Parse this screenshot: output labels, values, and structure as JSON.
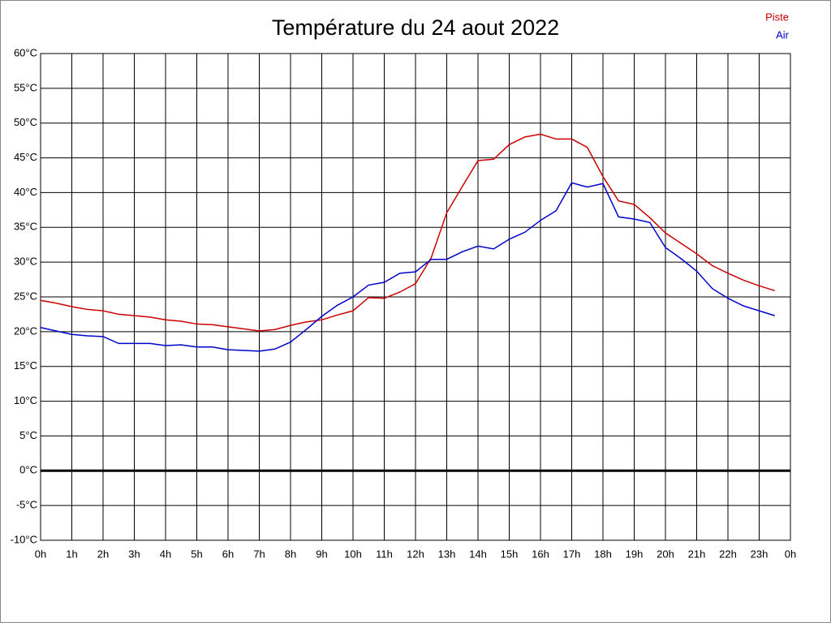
{
  "chart_data": {
    "type": "line",
    "title": "Température du 24 aout 2022",
    "x": [
      0,
      0.5,
      1,
      1.5,
      2,
      2.5,
      3,
      3.5,
      4,
      4.5,
      5,
      5.5,
      6,
      6.5,
      7,
      7.5,
      8,
      8.5,
      9,
      9.5,
      10,
      10.5,
      11,
      11.5,
      12,
      12.5,
      13,
      13.5,
      14,
      14.5,
      15,
      15.5,
      16,
      16.5,
      17,
      17.5,
      18,
      18.5,
      19,
      19.5,
      20,
      20.5,
      21,
      21.5,
      22,
      22.5,
      23,
      23.5
    ],
    "series": [
      {
        "name": "Piste",
        "color": "#cc0000",
        "values": [
          24.5,
          24.1,
          23.6,
          23.2,
          23.0,
          22.5,
          22.3,
          22.1,
          21.7,
          21.5,
          21.1,
          21.0,
          20.7,
          20.4,
          20.1,
          20.3,
          20.9,
          21.4,
          21.7,
          22.4,
          23.0,
          24.9,
          24.8,
          25.7,
          26.9,
          30.6,
          37.1,
          40.9,
          44.6,
          44.8,
          46.9,
          48.0,
          48.4,
          47.7,
          47.7,
          46.5,
          42.3,
          38.8,
          38.3,
          36.4,
          34.2,
          32.7,
          31.2,
          29.5,
          28.4,
          27.4,
          26.6,
          25.9
        ]
      },
      {
        "name": "Air",
        "color": "#0000cc",
        "values": [
          20.6,
          20.1,
          19.6,
          19.4,
          19.3,
          18.3,
          18.3,
          18.3,
          18.0,
          18.1,
          17.8,
          17.8,
          17.4,
          17.3,
          17.2,
          17.5,
          18.5,
          20.3,
          22.2,
          23.8,
          25.0,
          26.7,
          27.1,
          28.4,
          28.6,
          30.4,
          30.4,
          31.5,
          32.3,
          31.9,
          33.3,
          34.3,
          36.0,
          37.4,
          41.4,
          40.8,
          41.3,
          36.5,
          36.2,
          35.7,
          32.1,
          30.5,
          28.7,
          26.2,
          24.8,
          23.7,
          23.0,
          22.3
        ]
      }
    ],
    "xlim": [
      0,
      24
    ],
    "xticks": [
      {
        "value": 0,
        "label": "0h"
      },
      {
        "value": 1,
        "label": "1h"
      },
      {
        "value": 2,
        "label": "2h"
      },
      {
        "value": 3,
        "label": "3h"
      },
      {
        "value": 4,
        "label": "4h"
      },
      {
        "value": 5,
        "label": "5h"
      },
      {
        "value": 6,
        "label": "6h"
      },
      {
        "value": 7,
        "label": "7h"
      },
      {
        "value": 8,
        "label": "8h"
      },
      {
        "value": 9,
        "label": "9h"
      },
      {
        "value": 10,
        "label": "10h"
      },
      {
        "value": 11,
        "label": "11h"
      },
      {
        "value": 12,
        "label": "12h"
      },
      {
        "value": 13,
        "label": "13h"
      },
      {
        "value": 14,
        "label": "14h"
      },
      {
        "value": 15,
        "label": "15h"
      },
      {
        "value": 16,
        "label": "16h"
      },
      {
        "value": 17,
        "label": "17h"
      },
      {
        "value": 18,
        "label": "18h"
      },
      {
        "value": 19,
        "label": "19h"
      },
      {
        "value": 20,
        "label": "20h"
      },
      {
        "value": 21,
        "label": "21h"
      },
      {
        "value": 22,
        "label": "22h"
      },
      {
        "value": 23,
        "label": "23h"
      },
      {
        "value": 24,
        "label": "0h"
      }
    ],
    "ylim": [
      -10,
      60
    ],
    "yticks": [
      {
        "value": -10,
        "label": "-10°C"
      },
      {
        "value": -5,
        "label": "-5°C"
      },
      {
        "value": 0,
        "label": "0°C"
      },
      {
        "value": 5,
        "label": "5°C"
      },
      {
        "value": 10,
        "label": "10°C"
      },
      {
        "value": 15,
        "label": "15°C"
      },
      {
        "value": 20,
        "label": "20°C"
      },
      {
        "value": 25,
        "label": "25°C"
      },
      {
        "value": 30,
        "label": "30°C"
      },
      {
        "value": 35,
        "label": "35°C"
      },
      {
        "value": 40,
        "label": "40°C"
      },
      {
        "value": 45,
        "label": "45°C"
      },
      {
        "value": 50,
        "label": "50°C"
      },
      {
        "value": 55,
        "label": "55°C"
      },
      {
        "value": 60,
        "label": "60°C"
      }
    ],
    "grid": true,
    "legend": "top-right"
  }
}
